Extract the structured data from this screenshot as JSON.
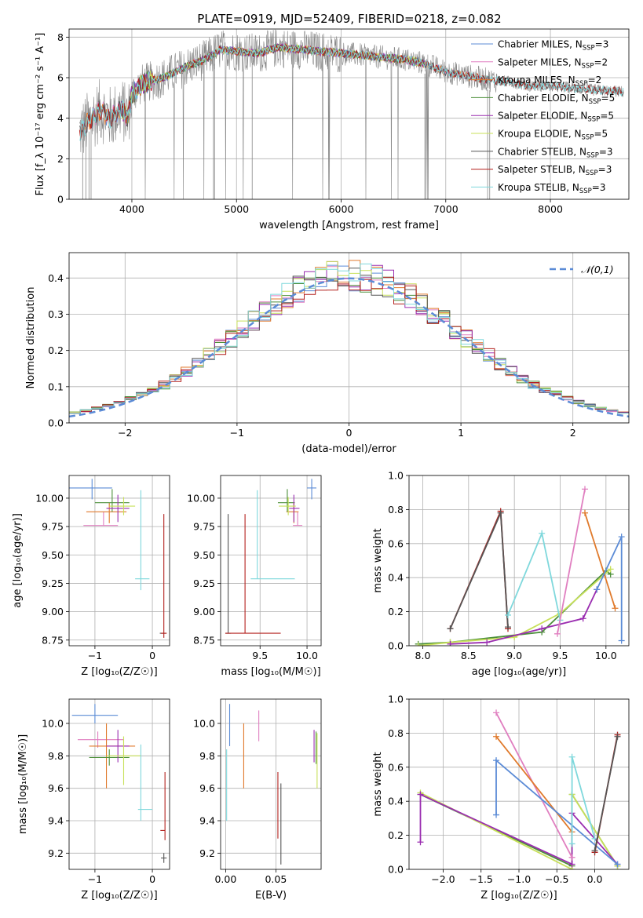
{
  "figure_title": "PLATE=0919, MJD=52409, FIBERID=0218, z=0.082",
  "colors": {
    "Chabrier MILES": "#5b8bd6",
    "Salpeter MILES": "#e07fc0",
    "Kroupa MILES": "#e07a2c",
    "Chabrier ELODIE": "#4c8f3a",
    "Salpeter ELODIE": "#9a2db0",
    "Kroupa ELODIE": "#c8e05a",
    "Chabrier STELIB": "#555555",
    "Salpeter STELIB": "#b3201d",
    "Kroupa STELIB": "#7fd8dc",
    "normal": "#5b8bd6",
    "grid": "#b0b0b0"
  },
  "chart_data": [
    {
      "id": "spectrum",
      "type": "line",
      "title": "",
      "xlabel": "wavelength [Angstrom, rest frame]",
      "ylabel": "Flux [f_λ 10⁻¹⁷ erg cm⁻² s⁻¹ A⁻¹]",
      "xlim": [
        3400,
        8750
      ],
      "ylim": [
        0,
        8.4
      ],
      "xticks": [
        4000,
        5000,
        6000,
        7000,
        8000
      ],
      "yticks": [
        0,
        2,
        4,
        6,
        8
      ],
      "legend_position": "right",
      "legend": [
        {
          "label": "Chabrier MILES, N",
          "sub": "SSP",
          "tail": "=3",
          "color_key": "Chabrier MILES"
        },
        {
          "label": "Salpeter MILES, N",
          "sub": "SSP",
          "tail": "=2",
          "color_key": "Salpeter MILES"
        },
        {
          "label": "Kroupa MILES, N",
          "sub": "SSP",
          "tail": "=2",
          "color_key": "Kroupa MILES"
        },
        {
          "label": "Chabrier ELODIE, N",
          "sub": "SSP",
          "tail": "=5",
          "color_key": "Chabrier ELODIE"
        },
        {
          "label": "Salpeter ELODIE, N",
          "sub": "SSP",
          "tail": "=5",
          "color_key": "Salpeter ELODIE"
        },
        {
          "label": "Kroupa ELODIE, N",
          "sub": "SSP",
          "tail": "=5",
          "color_key": "Kroupa ELODIE"
        },
        {
          "label": "Chabrier STELIB, N",
          "sub": "SSP",
          "tail": "=3",
          "color_key": "Chabrier STELIB"
        },
        {
          "label": "Salpeter STELIB, N",
          "sub": "SSP",
          "tail": "=3",
          "color_key": "Salpeter STELIB"
        },
        {
          "label": "Kroupa STELIB, N",
          "sub": "SSP",
          "tail": "=3",
          "color_key": "Kroupa STELIB"
        }
      ],
      "continuum": [
        [
          3500,
          3.3
        ],
        [
          3600,
          3.9
        ],
        [
          3700,
          4.4
        ],
        [
          3800,
          4.0
        ],
        [
          3900,
          4.5
        ],
        [
          3960,
          4.0
        ],
        [
          4000,
          5.2
        ],
        [
          4100,
          5.7
        ],
        [
          4300,
          6.0
        ],
        [
          4500,
          6.5
        ],
        [
          4700,
          6.9
        ],
        [
          4850,
          7.4
        ],
        [
          5000,
          7.3
        ],
        [
          5200,
          7.2
        ],
        [
          5400,
          7.5
        ],
        [
          5600,
          7.4
        ],
        [
          5800,
          7.3
        ],
        [
          6000,
          7.2
        ],
        [
          6200,
          7.1
        ],
        [
          6400,
          7.0
        ],
        [
          6600,
          6.9
        ],
        [
          6800,
          6.7
        ],
        [
          7000,
          6.3
        ],
        [
          7200,
          6.1
        ],
        [
          7400,
          5.9
        ],
        [
          7600,
          5.8
        ],
        [
          7800,
          5.6
        ],
        [
          8000,
          5.6
        ],
        [
          8200,
          5.5
        ],
        [
          8400,
          5.4
        ],
        [
          8700,
          5.3
        ]
      ]
    },
    {
      "id": "residuals",
      "type": "step",
      "xlabel": "(data-model)/error",
      "ylabel": "Normed distribution",
      "xlim": [
        -2.5,
        2.5
      ],
      "ylim": [
        0,
        0.47
      ],
      "xticks": [
        -2,
        -1,
        0,
        1,
        2
      ],
      "yticks": [
        0.0,
        0.1,
        0.2,
        0.3,
        0.4
      ],
      "bin_width": 0.1,
      "legend_position": "top-right",
      "normal_label": "𝒩(0,1)",
      "normal_mu": 0,
      "normal_sigma": 1
    },
    {
      "id": "age_vs_Z",
      "type": "errorbar",
      "xlabel": "Z [log₁₀(Z/Z☉)]",
      "ylabel": "age  [log₁₀(age/yr)]",
      "xlim": [
        -1.45,
        0.3
      ],
      "ylim": [
        8.7,
        10.2
      ],
      "xticks": [
        -1,
        0
      ],
      "yticks": [
        8.75,
        9.0,
        9.25,
        9.5,
        9.75,
        10.0
      ],
      "points": [
        {
          "k": "Chabrier MILES",
          "x": -1.05,
          "xl": 0.45,
          "xh": 0.35,
          "y": 10.09,
          "yl": 0.1,
          "yh": 0.08
        },
        {
          "k": "Salpeter MILES",
          "x": -0.85,
          "xl": 0.35,
          "xh": 0.25,
          "y": 9.76,
          "yl": 0.0,
          "yh": 0.12
        },
        {
          "k": "Kroupa MILES",
          "x": -0.75,
          "xl": 0.4,
          "xh": 0.3,
          "y": 9.88,
          "yl": 0.1,
          "yh": 0.08
        },
        {
          "k": "Chabrier ELODIE",
          "x": -0.7,
          "xl": 0.3,
          "xh": 0.3,
          "y": 9.96,
          "yl": 0.08,
          "yh": 0.12
        },
        {
          "k": "Salpeter ELODIE",
          "x": -0.6,
          "xl": 0.2,
          "xh": 0.2,
          "y": 9.91,
          "yl": 0.12,
          "yh": 0.12
        },
        {
          "k": "Kroupa ELODIE",
          "x": -0.5,
          "xl": 0.25,
          "xh": 0.2,
          "y": 9.93,
          "yl": 0.08,
          "yh": 0.08
        },
        {
          "k": "Chabrier STELIB",
          "x": 0.18,
          "xl": 0.05,
          "xh": 0.05,
          "y": 8.81,
          "yl": 0.0,
          "yh": 0.0
        },
        {
          "k": "Salpeter STELIB",
          "x": 0.2,
          "xl": 0.05,
          "xh": 0.05,
          "y": 8.81,
          "yl": 0.04,
          "yh": 1.05
        },
        {
          "k": "Kroupa STELIB",
          "x": -0.2,
          "xl": 0.1,
          "xh": 0.15,
          "y": 9.29,
          "yl": 0.1,
          "yh": 0.78
        }
      ]
    },
    {
      "id": "age_vs_mass",
      "type": "errorbar",
      "xlabel": "mass [log₁₀(M/M☉)]",
      "ylabel": "",
      "xlim": [
        9.08,
        10.15
      ],
      "ylim": [
        8.7,
        10.2
      ],
      "xticks": [
        9.0,
        9.5,
        10.0
      ],
      "yticks": [
        8.75,
        9.0,
        9.25,
        9.5,
        9.75,
        10.0
      ],
      "points": [
        {
          "k": "Chabrier MILES",
          "x": 10.05,
          "xl": 0.05,
          "xh": 0.05,
          "y": 10.09,
          "yl": 0.1,
          "yh": 0.08
        },
        {
          "k": "Salpeter MILES",
          "x": 9.9,
          "xl": 0.05,
          "xh": 0.05,
          "y": 9.76,
          "yl": 0.0,
          "yh": 0.12
        },
        {
          "k": "Kroupa MILES",
          "x": 9.86,
          "xl": 0.08,
          "xh": 0.05,
          "y": 9.88,
          "yl": 0.1,
          "yh": 0.08
        },
        {
          "k": "Chabrier ELODIE",
          "x": 9.79,
          "xl": 0.1,
          "xh": 0.08,
          "y": 9.96,
          "yl": 0.08,
          "yh": 0.12
        },
        {
          "k": "Salpeter ELODIE",
          "x": 9.86,
          "xl": 0.05,
          "xh": 0.06,
          "y": 9.91,
          "yl": 0.12,
          "yh": 0.12
        },
        {
          "k": "Kroupa ELODIE",
          "x": 9.8,
          "xl": 0.1,
          "xh": 0.08,
          "y": 9.93,
          "yl": 0.08,
          "yh": 0.08
        },
        {
          "k": "Chabrier STELIB",
          "x": 9.16,
          "xl": 0.03,
          "xh": 0.03,
          "y": 8.81,
          "yl": 0.0,
          "yh": 1.05
        },
        {
          "k": "Salpeter STELIB",
          "x": 9.34,
          "xl": 0.21,
          "xh": 0.38,
          "y": 8.81,
          "yl": 0.0,
          "yh": 1.05
        },
        {
          "k": "Kroupa STELIB",
          "x": 9.47,
          "xl": 0.07,
          "xh": 0.4,
          "y": 9.29,
          "yl": 0.0,
          "yh": 0.78
        }
      ]
    },
    {
      "id": "weight_vs_age",
      "type": "line",
      "xlabel": "age  [log₁₀(age/yr)]",
      "ylabel": "mass weight",
      "xlim": [
        7.85,
        10.25
      ],
      "ylim": [
        0,
        1.0
      ],
      "xticks": [
        8.0,
        8.5,
        9.0,
        9.5,
        10.0
      ],
      "yticks": [
        0.0,
        0.2,
        0.4,
        0.6,
        0.8,
        1.0
      ],
      "series": [
        {
          "k": "Chabrier ELODIE",
          "pts": [
            [
              7.95,
              0.01
            ],
            [
              8.3,
              0.02
            ],
            [
              9.3,
              0.08
            ],
            [
              10.0,
              0.44
            ],
            [
              10.05,
              0.42
            ]
          ]
        },
        {
          "k": "Kroupa ELODIE",
          "pts": [
            [
              7.95,
              0.0
            ],
            [
              8.3,
              0.02
            ],
            [
              9.0,
              0.05
            ],
            [
              9.5,
              0.19
            ],
            [
              10.05,
              0.45
            ]
          ]
        },
        {
          "k": "Salpeter ELODIE",
          "pts": [
            [
              8.3,
              0.01
            ],
            [
              8.7,
              0.02
            ],
            [
              9.3,
              0.1
            ],
            [
              9.75,
              0.16
            ],
            [
              9.9,
              0.33
            ]
          ]
        },
        {
          "k": "Salpeter STELIB",
          "pts": [
            [
              8.3,
              0.1
            ],
            [
              8.85,
              0.79
            ],
            [
              8.93,
              0.1
            ]
          ]
        },
        {
          "k": "Chabrier STELIB",
          "pts": [
            [
              8.3,
              0.1
            ],
            [
              8.85,
              0.78
            ],
            [
              8.93,
              0.11
            ]
          ]
        },
        {
          "k": "Kroupa STELIB",
          "pts": [
            [
              8.93,
              0.18
            ],
            [
              9.3,
              0.66
            ],
            [
              9.5,
              0.15
            ]
          ]
        },
        {
          "k": "Salpeter MILES",
          "pts": [
            [
              9.47,
              0.07
            ],
            [
              9.77,
              0.92
            ]
          ]
        },
        {
          "k": "Kroupa MILES",
          "pts": [
            [
              9.77,
              0.78
            ],
            [
              10.1,
              0.22
            ]
          ]
        },
        {
          "k": "Chabrier MILES",
          "pts": [
            [
              9.9,
              0.33
            ],
            [
              10.17,
              0.64
            ],
            [
              10.17,
              0.03
            ]
          ]
        }
      ]
    },
    {
      "id": "mass_vs_Z",
      "type": "errorbar",
      "xlabel": "Z [log₁₀(Z/Z☉)]",
      "ylabel": "mass [log₁₀(M/M☉)]",
      "xlim": [
        -1.45,
        0.3
      ],
      "ylim": [
        9.1,
        10.15
      ],
      "xticks": [
        -1,
        0
      ],
      "yticks": [
        9.2,
        9.4,
        9.6,
        9.8,
        10.0
      ],
      "points": [
        {
          "k": "Chabrier MILES",
          "x": -1.0,
          "xl": 0.4,
          "xh": 0.4,
          "y": 10.05,
          "yl": 0.05,
          "yh": 0.07
        },
        {
          "k": "Salpeter MILES",
          "x": -0.95,
          "xl": 0.35,
          "xh": 0.45,
          "y": 9.9,
          "yl": 0.05,
          "yh": 0.05
        },
        {
          "k": "Kroupa MILES",
          "x": -0.8,
          "xl": 0.3,
          "xh": 0.5,
          "y": 9.86,
          "yl": 0.26,
          "yh": 0.14
        },
        {
          "k": "Chabrier ELODIE",
          "x": -0.75,
          "xl": 0.35,
          "xh": 0.35,
          "y": 9.79,
          "yl": 0.05,
          "yh": 0.05
        },
        {
          "k": "Salpeter ELODIE",
          "x": -0.6,
          "xl": 0.2,
          "xh": 0.2,
          "y": 9.86,
          "yl": 0.1,
          "yh": 0.1
        },
        {
          "k": "Kroupa ELODIE",
          "x": -0.5,
          "xl": 0.3,
          "xh": 0.3,
          "y": 9.8,
          "yl": 0.18,
          "yh": 0.12
        },
        {
          "k": "Chabrier STELIB",
          "x": 0.2,
          "xl": 0.05,
          "xh": 0.05,
          "y": 9.17,
          "yl": 0.03,
          "yh": 0.03
        },
        {
          "k": "Salpeter STELIB",
          "x": 0.22,
          "xl": 0.08,
          "xh": 0.0,
          "y": 9.34,
          "yl": 0.06,
          "yh": 0.36
        },
        {
          "k": "Kroupa STELIB",
          "x": -0.2,
          "xl": 0.05,
          "xh": 0.2,
          "y": 9.47,
          "yl": 0.07,
          "yh": 0.4
        }
      ]
    },
    {
      "id": "mass_vs_ebv",
      "type": "errorbar",
      "xlabel": "E(B-V)",
      "ylabel": "",
      "xlim": [
        -0.005,
        0.095
      ],
      "ylim": [
        9.1,
        10.15
      ],
      "xticks": [
        0.0,
        0.05
      ],
      "yticks": [
        9.2,
        9.4,
        9.6,
        9.8,
        10.0
      ],
      "points": [
        {
          "k": "Chabrier MILES",
          "x": 0.004,
          "xl": 0,
          "xh": 0,
          "y": 10.0,
          "yl": 0.14,
          "yh": 0.12
        },
        {
          "k": "Salpeter MILES",
          "x": 0.033,
          "xl": 0,
          "xh": 0,
          "y": 9.97,
          "yl": 0.08,
          "yh": 0.11
        },
        {
          "k": "Kroupa MILES",
          "x": 0.018,
          "xl": 0,
          "xh": 0,
          "y": 9.8,
          "yl": 0.2,
          "yh": 0.2
        },
        {
          "k": "Chabrier ELODIE",
          "x": 0.09,
          "xl": 0,
          "xh": 0,
          "y": 9.85,
          "yl": 0.1,
          "yh": 0.1
        },
        {
          "k": "Salpeter ELODIE",
          "x": 0.088,
          "xl": 0,
          "xh": 0,
          "y": 9.86,
          "yl": 0.1,
          "yh": 0.1
        },
        {
          "k": "Kroupa ELODIE",
          "x": 0.091,
          "xl": 0,
          "xh": 0,
          "y": 9.78,
          "yl": 0.18,
          "yh": 0.16
        },
        {
          "k": "Chabrier STELIB",
          "x": 0.055,
          "xl": 0,
          "xh": 0,
          "y": 9.3,
          "yl": 0.17,
          "yh": 0.33
        },
        {
          "k": "Salpeter STELIB",
          "x": 0.052,
          "xl": 0,
          "xh": 0,
          "y": 9.49,
          "yl": 0.2,
          "yh": 0.21
        },
        {
          "k": "Kroupa STELIB",
          "x": 0.001,
          "xl": 0,
          "xh": 0,
          "y": 9.62,
          "yl": 0.22,
          "yh": 0.22
        }
      ]
    },
    {
      "id": "weight_vs_Z",
      "type": "line",
      "xlabel": "Z [log₁₀(Z/Z☉)]",
      "ylabel": "mass weight",
      "xlim": [
        -2.45,
        0.45
      ],
      "ylim": [
        0,
        1.0
      ],
      "xticks": [
        -2.0,
        -1.5,
        -1.0,
        -0.5,
        0.0
      ],
      "yticks": [
        0.0,
        0.2,
        0.4,
        0.6,
        0.8,
        1.0
      ],
      "series": [
        {
          "k": "Chabrier ELODIE",
          "pts": [
            [
              -2.3,
              0.44
            ],
            [
              -0.3,
              0.02
            ],
            [
              -0.3,
              0.44
            ],
            [
              0.3,
              0.02
            ]
          ]
        },
        {
          "k": "Kroupa ELODIE",
          "pts": [
            [
              -2.3,
              0.45
            ],
            [
              -0.3,
              0.0
            ],
            [
              -0.3,
              0.44
            ],
            [
              0.3,
              0.02
            ]
          ]
        },
        {
          "k": "Salpeter ELODIE",
          "pts": [
            [
              -2.3,
              0.16
            ],
            [
              -2.3,
              0.44
            ],
            [
              -0.3,
              0.03
            ],
            [
              -0.3,
              0.33
            ],
            [
              0.3,
              0.03
            ]
          ]
        },
        {
          "k": "Salpeter MILES",
          "pts": [
            [
              -1.3,
              0.92
            ],
            [
              -0.3,
              0.07
            ]
          ]
        },
        {
          "k": "Kroupa MILES",
          "pts": [
            [
              -1.3,
              0.78
            ],
            [
              -0.3,
              0.22
            ]
          ]
        },
        {
          "k": "Chabrier MILES",
          "pts": [
            [
              -1.3,
              0.32
            ],
            [
              -1.3,
              0.64
            ],
            [
              0.3,
              0.03
            ]
          ]
        },
        {
          "k": "Kroupa STELIB",
          "pts": [
            [
              -0.3,
              0.15
            ],
            [
              -0.3,
              0.66
            ],
            [
              0.0,
              0.18
            ]
          ]
        },
        {
          "k": "Salpeter STELIB",
          "pts": [
            [
              0.0,
              0.1
            ],
            [
              0.3,
              0.79
            ]
          ]
        },
        {
          "k": "Chabrier STELIB",
          "pts": [
            [
              0.0,
              0.11
            ],
            [
              0.3,
              0.78
            ]
          ]
        }
      ]
    }
  ]
}
